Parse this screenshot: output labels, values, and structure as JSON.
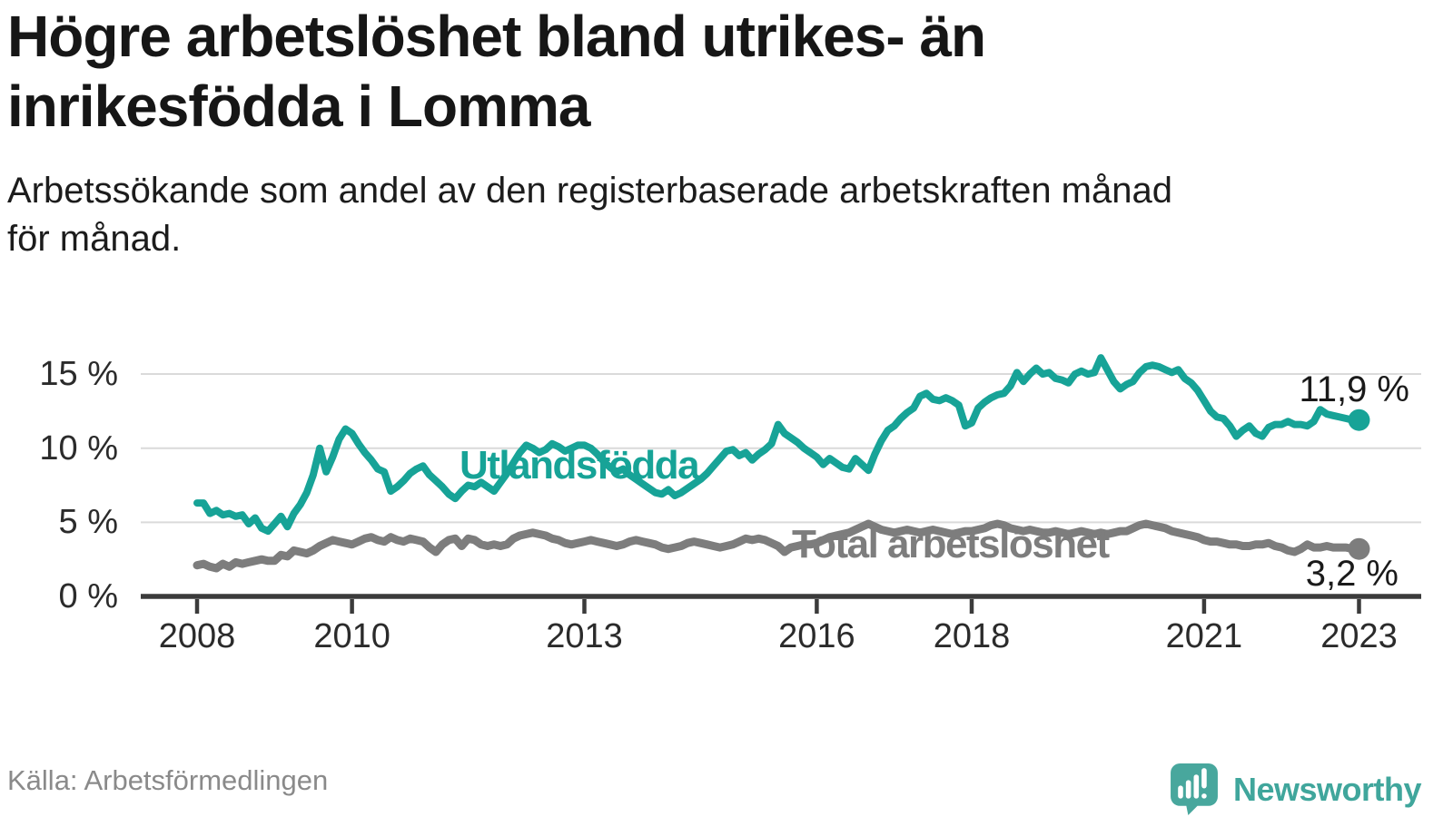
{
  "header": {
    "title_lines": [
      "Högre arbetslöshet bland utrikes- än",
      "inrikesfödda i Lomma"
    ],
    "subtitle_lines": [
      "Arbetssökande som andel av den registerbaserade arbetskraften månad",
      "för månad."
    ]
  },
  "footer": {
    "source": "Källa: Arbetsförmedlingen",
    "brand": "Newsworthy"
  },
  "colors": {
    "foreign_born": "#17a397",
    "total": "#7d7d7d",
    "grid": "#dadada",
    "axis": "#3b3b3b",
    "tick_text": "#2b2b2b",
    "title_text": "#161616",
    "muted_text": "#8a8a8a",
    "logo_teal": "#48a79d",
    "background": "#ffffff"
  },
  "chart_data": {
    "type": "line",
    "unit": "%",
    "x_start": "2008-01",
    "x_end": "2023-01",
    "x_step_months": 1,
    "ylim": [
      0,
      16.5
    ],
    "grid": "horizontal",
    "legend": "inline",
    "x_ticks": [
      {
        "year": 2008,
        "label": "2008"
      },
      {
        "year": 2010,
        "label": "2010"
      },
      {
        "year": 2013,
        "label": "2013"
      },
      {
        "year": 2016,
        "label": "2016"
      },
      {
        "year": 2018,
        "label": "2018"
      },
      {
        "year": 2021,
        "label": "2021"
      },
      {
        "year": 2023,
        "label": "2023"
      }
    ],
    "y_ticks": [
      {
        "value": 0,
        "label": "0 %"
      },
      {
        "value": 5,
        "label": "5 %"
      },
      {
        "value": 10,
        "label": "10 %"
      },
      {
        "value": 15,
        "label": "15 %"
      }
    ],
    "series": [
      {
        "id": "utlandsfodda",
        "name": "Utlandsfödda",
        "color": "#17a397",
        "end_value": 11.9,
        "end_label": "11,9 %",
        "values": [
          6.3,
          6.3,
          5.6,
          5.8,
          5.5,
          5.6,
          5.4,
          5.5,
          4.9,
          5.3,
          4.6,
          4.4,
          4.9,
          5.4,
          4.7,
          5.6,
          6.2,
          7.0,
          8.2,
          10.0,
          8.4,
          9.4,
          10.6,
          11.3,
          11.0,
          10.3,
          9.7,
          9.2,
          8.6,
          8.4,
          7.1,
          7.4,
          7.8,
          8.3,
          8.6,
          8.8,
          8.2,
          7.8,
          7.4,
          6.9,
          6.6,
          7.1,
          7.5,
          7.4,
          7.7,
          7.4,
          7.1,
          7.7,
          8.3,
          9.0,
          9.7,
          10.2,
          10.0,
          9.7,
          9.9,
          10.3,
          10.1,
          9.8,
          10.0,
          10.2,
          10.2,
          10.0,
          9.6,
          9.1,
          8.7,
          8.4,
          8.6,
          8.2,
          7.9,
          7.6,
          7.3,
          7.0,
          6.9,
          7.2,
          6.8,
          7.0,
          7.3,
          7.6,
          7.9,
          8.3,
          8.8,
          9.3,
          9.8,
          9.9,
          9.5,
          9.7,
          9.2,
          9.6,
          9.9,
          10.3,
          11.6,
          11.0,
          10.7,
          10.4,
          10.0,
          9.7,
          9.4,
          8.9,
          9.3,
          9.0,
          8.7,
          8.6,
          9.3,
          8.9,
          8.5,
          9.6,
          10.5,
          11.2,
          11.5,
          12.0,
          12.4,
          12.7,
          13.5,
          13.7,
          13.3,
          13.2,
          13.4,
          13.2,
          12.9,
          11.5,
          11.7,
          12.7,
          13.1,
          13.4,
          13.6,
          13.7,
          14.2,
          15.1,
          14.5,
          15.0,
          15.4,
          15.0,
          15.1,
          14.7,
          14.6,
          14.4,
          15.0,
          15.2,
          15.0,
          15.1,
          16.1,
          15.3,
          14.5,
          14.0,
          14.3,
          14.5,
          15.1,
          15.5,
          15.6,
          15.5,
          15.3,
          15.1,
          15.3,
          14.7,
          14.4,
          13.9,
          13.2,
          12.5,
          12.1,
          12.0,
          11.5,
          10.8,
          11.2,
          11.5,
          11.0,
          10.8,
          11.4,
          11.6,
          11.6,
          11.8,
          11.6,
          11.6,
          11.5,
          11.8,
          12.6,
          12.3,
          12.2,
          12.1,
          12.0,
          11.9,
          11.9
        ]
      },
      {
        "id": "total",
        "name": "Total arbetslöshet",
        "color": "#7d7d7d",
        "end_value": 3.2,
        "end_label": "3,2 %",
        "values": [
          2.1,
          2.2,
          2.0,
          1.9,
          2.2,
          2.0,
          2.3,
          2.2,
          2.3,
          2.4,
          2.5,
          2.4,
          2.4,
          2.8,
          2.7,
          3.1,
          3.0,
          2.9,
          3.1,
          3.4,
          3.6,
          3.8,
          3.7,
          3.6,
          3.5,
          3.7,
          3.9,
          4.0,
          3.8,
          3.7,
          4.0,
          3.8,
          3.7,
          3.9,
          3.8,
          3.7,
          3.3,
          3.0,
          3.5,
          3.8,
          3.9,
          3.4,
          3.9,
          3.8,
          3.5,
          3.4,
          3.5,
          3.4,
          3.5,
          3.9,
          4.1,
          4.2,
          4.3,
          4.2,
          4.1,
          3.9,
          3.8,
          3.6,
          3.5,
          3.6,
          3.7,
          3.8,
          3.7,
          3.6,
          3.5,
          3.4,
          3.5,
          3.7,
          3.8,
          3.7,
          3.6,
          3.5,
          3.3,
          3.2,
          3.3,
          3.4,
          3.6,
          3.7,
          3.6,
          3.5,
          3.4,
          3.3,
          3.4,
          3.5,
          3.7,
          3.9,
          3.8,
          3.9,
          3.8,
          3.6,
          3.4,
          3.0,
          3.3,
          3.4,
          3.5,
          3.5,
          3.6,
          3.8,
          4.0,
          4.1,
          4.2,
          4.3,
          4.5,
          4.7,
          4.9,
          4.7,
          4.5,
          4.4,
          4.3,
          4.4,
          4.5,
          4.4,
          4.3,
          4.4,
          4.5,
          4.4,
          4.3,
          4.2,
          4.3,
          4.4,
          4.4,
          4.5,
          4.6,
          4.8,
          4.9,
          4.8,
          4.6,
          4.5,
          4.4,
          4.5,
          4.4,
          4.3,
          4.3,
          4.4,
          4.3,
          4.2,
          4.3,
          4.4,
          4.3,
          4.2,
          4.3,
          4.2,
          4.3,
          4.4,
          4.4,
          4.6,
          4.8,
          4.9,
          4.8,
          4.7,
          4.6,
          4.4,
          4.3,
          4.2,
          4.1,
          4.0,
          3.8,
          3.7,
          3.7,
          3.6,
          3.5,
          3.5,
          3.4,
          3.4,
          3.5,
          3.5,
          3.6,
          3.4,
          3.3,
          3.1,
          3.0,
          3.2,
          3.5,
          3.3,
          3.3,
          3.4,
          3.3,
          3.3,
          3.3,
          3.2,
          3.2
        ]
      }
    ]
  }
}
